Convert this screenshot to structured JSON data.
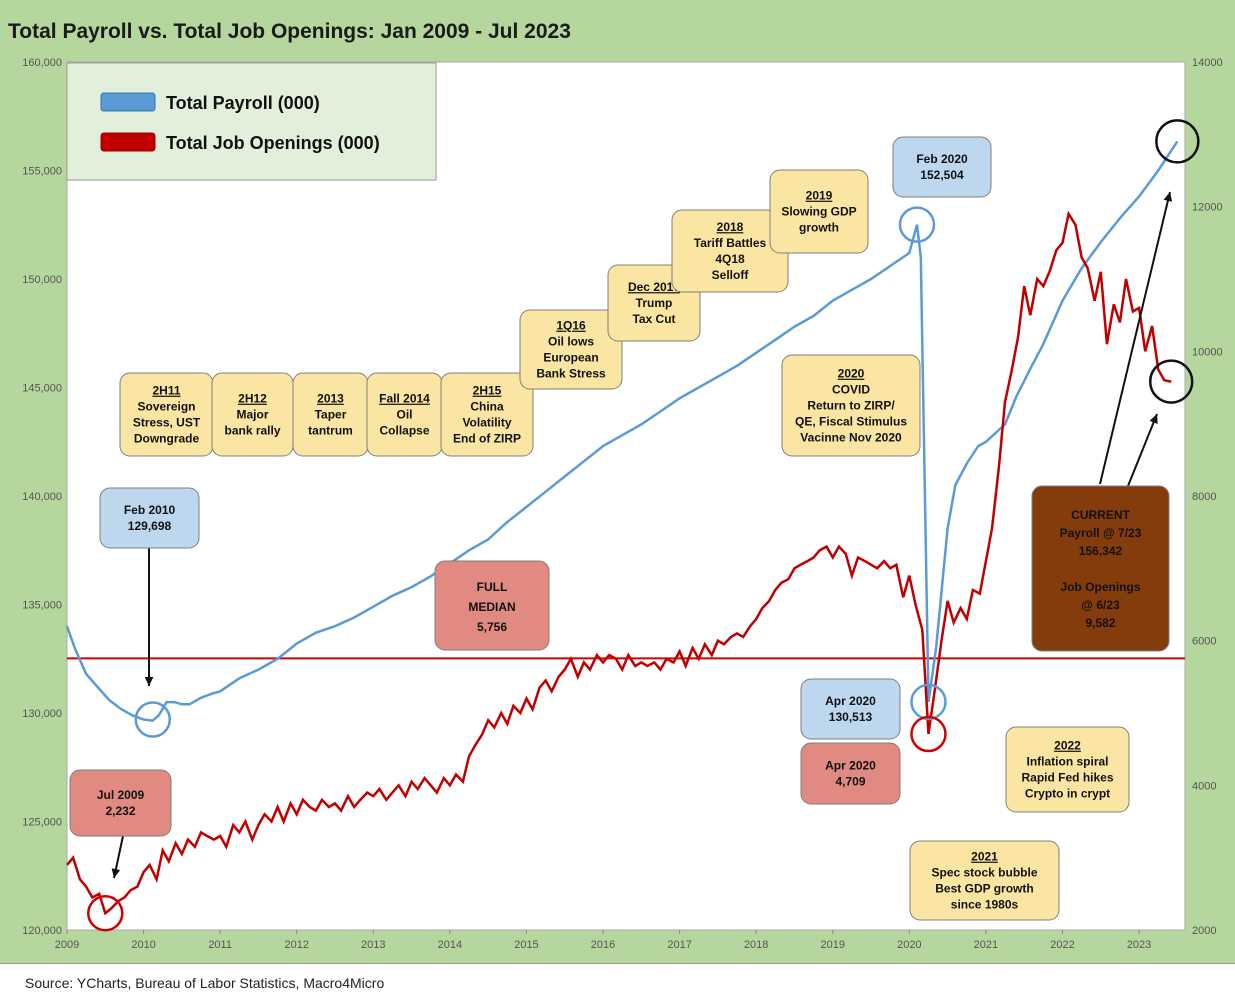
{
  "title": "Total Payroll vs. Total Job Openings: Jan 2009 - Jul 2023",
  "source": "Source: YCharts, Bureau of Labor Statistics, Macro4Micro",
  "chart_data": {
    "type": "line",
    "left_axis": {
      "min": 120000,
      "max": 160000,
      "ticks": [
        "120,000",
        "125,000",
        "130,000",
        "135,000",
        "140,000",
        "145,000",
        "150,000",
        "155,000",
        "160,000"
      ]
    },
    "right_axis": {
      "min": 2000,
      "max": 14000,
      "ticks": [
        "2000",
        "4000",
        "6000",
        "8000",
        "10000",
        "12000",
        "14000"
      ]
    },
    "x_ticks": [
      "2009",
      "2010",
      "2011",
      "2012",
      "2013",
      "2014",
      "2015",
      "2016",
      "2017",
      "2018",
      "2019",
      "2020",
      "2021",
      "2022",
      "2023"
    ],
    "x_range": [
      2009.0,
      2023.6
    ],
    "legend": [
      {
        "name": "Total Payroll (000)",
        "color": "#5b9bd5"
      },
      {
        "name": "Total Job Openings (000)",
        "color": "#c00000"
      }
    ],
    "median_line": {
      "value": 5756,
      "color": "#d00000"
    },
    "payroll": [
      [
        2009.0,
        134000
      ],
      [
        2009.1,
        133000
      ],
      [
        2009.25,
        131800
      ],
      [
        2009.4,
        131200
      ],
      [
        2009.55,
        130600
      ],
      [
        2009.7,
        130200
      ],
      [
        2009.85,
        129900
      ],
      [
        2010.0,
        129700
      ],
      [
        2010.12,
        129650
      ],
      [
        2010.2,
        129900
      ],
      [
        2010.3,
        130500
      ],
      [
        2010.4,
        130500
      ],
      [
        2010.5,
        130400
      ],
      [
        2010.6,
        130400
      ],
      [
        2010.75,
        130700
      ],
      [
        2010.9,
        130900
      ],
      [
        2011.0,
        131000
      ],
      [
        2011.25,
        131600
      ],
      [
        2011.5,
        132000
      ],
      [
        2011.75,
        132500
      ],
      [
        2012.0,
        133200
      ],
      [
        2012.25,
        133700
      ],
      [
        2012.5,
        134000
      ],
      [
        2012.75,
        134400
      ],
      [
        2013.0,
        134900
      ],
      [
        2013.25,
        135400
      ],
      [
        2013.5,
        135800
      ],
      [
        2013.75,
        136300
      ],
      [
        2014.0,
        136900
      ],
      [
        2014.25,
        137500
      ],
      [
        2014.5,
        138000
      ],
      [
        2014.75,
        138800
      ],
      [
        2015.0,
        139500
      ],
      [
        2015.25,
        140200
      ],
      [
        2015.5,
        140900
      ],
      [
        2015.75,
        141600
      ],
      [
        2016.0,
        142300
      ],
      [
        2016.25,
        142800
      ],
      [
        2016.5,
        143300
      ],
      [
        2016.75,
        143900
      ],
      [
        2017.0,
        144500
      ],
      [
        2017.25,
        145000
      ],
      [
        2017.5,
        145500
      ],
      [
        2017.75,
        146000
      ],
      [
        2018.0,
        146600
      ],
      [
        2018.25,
        147200
      ],
      [
        2018.5,
        147800
      ],
      [
        2018.75,
        148300
      ],
      [
        2019.0,
        149000
      ],
      [
        2019.25,
        149500
      ],
      [
        2019.5,
        150000
      ],
      [
        2019.75,
        150600
      ],
      [
        2020.0,
        151200
      ],
      [
        2020.1,
        152504
      ],
      [
        2020.15,
        151000
      ],
      [
        2020.25,
        130513
      ],
      [
        2020.35,
        133000
      ],
      [
        2020.5,
        138500
      ],
      [
        2020.6,
        140500
      ],
      [
        2020.75,
        141500
      ],
      [
        2020.9,
        142300
      ],
      [
        2021.0,
        142500
      ],
      [
        2021.25,
        143300
      ],
      [
        2021.4,
        144600
      ],
      [
        2021.6,
        146000
      ],
      [
        2021.75,
        147000
      ],
      [
        2022.0,
        149000
      ],
      [
        2022.25,
        150500
      ],
      [
        2022.5,
        151700
      ],
      [
        2022.75,
        152800
      ],
      [
        2023.0,
        153800
      ],
      [
        2023.25,
        155000
      ],
      [
        2023.5,
        156342
      ]
    ],
    "job_openings": [
      [
        2009.0,
        2900
      ],
      [
        2009.08,
        3000
      ],
      [
        2009.17,
        2700
      ],
      [
        2009.25,
        2600
      ],
      [
        2009.33,
        2450
      ],
      [
        2009.42,
        2500
      ],
      [
        2009.5,
        2232
      ],
      [
        2009.58,
        2300
      ],
      [
        2009.67,
        2400
      ],
      [
        2009.75,
        2450
      ],
      [
        2009.83,
        2550
      ],
      [
        2009.92,
        2600
      ],
      [
        2010.0,
        2800
      ],
      [
        2010.08,
        2900
      ],
      [
        2010.17,
        2700
      ],
      [
        2010.25,
        3100
      ],
      [
        2010.33,
        2950
      ],
      [
        2010.42,
        3200
      ],
      [
        2010.5,
        3050
      ],
      [
        2010.58,
        3250
      ],
      [
        2010.67,
        3150
      ],
      [
        2010.75,
        3350
      ],
      [
        2010.83,
        3300
      ],
      [
        2010.92,
        3250
      ],
      [
        2011.0,
        3300
      ],
      [
        2011.08,
        3150
      ],
      [
        2011.17,
        3450
      ],
      [
        2011.25,
        3350
      ],
      [
        2011.33,
        3500
      ],
      [
        2011.42,
        3250
      ],
      [
        2011.5,
        3450
      ],
      [
        2011.58,
        3600
      ],
      [
        2011.67,
        3500
      ],
      [
        2011.75,
        3700
      ],
      [
        2011.83,
        3500
      ],
      [
        2011.92,
        3750
      ],
      [
        2012.0,
        3600
      ],
      [
        2012.08,
        3800
      ],
      [
        2012.17,
        3700
      ],
      [
        2012.25,
        3650
      ],
      [
        2012.33,
        3800
      ],
      [
        2012.42,
        3700
      ],
      [
        2012.5,
        3750
      ],
      [
        2012.58,
        3650
      ],
      [
        2012.67,
        3850
      ],
      [
        2012.75,
        3700
      ],
      [
        2012.83,
        3800
      ],
      [
        2012.92,
        3900
      ],
      [
        2013.0,
        3850
      ],
      [
        2013.08,
        3950
      ],
      [
        2013.17,
        3800
      ],
      [
        2013.25,
        3900
      ],
      [
        2013.33,
        4000
      ],
      [
        2013.42,
        3850
      ],
      [
        2013.5,
        4050
      ],
      [
        2013.58,
        3950
      ],
      [
        2013.67,
        4100
      ],
      [
        2013.75,
        4000
      ],
      [
        2013.83,
        3900
      ],
      [
        2013.92,
        4100
      ],
      [
        2014.0,
        4000
      ],
      [
        2014.08,
        4150
      ],
      [
        2014.17,
        4050
      ],
      [
        2014.25,
        4400
      ],
      [
        2014.33,
        4550
      ],
      [
        2014.42,
        4700
      ],
      [
        2014.5,
        4900
      ],
      [
        2014.58,
        4800
      ],
      [
        2014.67,
        5000
      ],
      [
        2014.75,
        4850
      ],
      [
        2014.83,
        5100
      ],
      [
        2014.92,
        5000
      ],
      [
        2015.0,
        5200
      ],
      [
        2015.08,
        5050
      ],
      [
        2015.17,
        5350
      ],
      [
        2015.25,
        5450
      ],
      [
        2015.33,
        5300
      ],
      [
        2015.42,
        5500
      ],
      [
        2015.5,
        5600
      ],
      [
        2015.58,
        5750
      ],
      [
        2015.67,
        5500
      ],
      [
        2015.75,
        5700
      ],
      [
        2015.83,
        5600
      ],
      [
        2015.92,
        5800
      ],
      [
        2016.0,
        5700
      ],
      [
        2016.08,
        5800
      ],
      [
        2016.17,
        5750
      ],
      [
        2016.25,
        5600
      ],
      [
        2016.33,
        5800
      ],
      [
        2016.42,
        5650
      ],
      [
        2016.5,
        5700
      ],
      [
        2016.58,
        5650
      ],
      [
        2016.67,
        5700
      ],
      [
        2016.75,
        5600
      ],
      [
        2016.83,
        5750
      ],
      [
        2016.92,
        5700
      ],
      [
        2017.0,
        5850
      ],
      [
        2017.08,
        5650
      ],
      [
        2017.17,
        5900
      ],
      [
        2017.25,
        5750
      ],
      [
        2017.33,
        5950
      ],
      [
        2017.42,
        5800
      ],
      [
        2017.5,
        6000
      ],
      [
        2017.58,
        5950
      ],
      [
        2017.67,
        6050
      ],
      [
        2017.75,
        6100
      ],
      [
        2017.83,
        6050
      ],
      [
        2017.92,
        6200
      ],
      [
        2018.0,
        6300
      ],
      [
        2018.08,
        6450
      ],
      [
        2018.17,
        6550
      ],
      [
        2018.25,
        6700
      ],
      [
        2018.33,
        6800
      ],
      [
        2018.42,
        6850
      ],
      [
        2018.5,
        7000
      ],
      [
        2018.58,
        7050
      ],
      [
        2018.67,
        7100
      ],
      [
        2018.75,
        7150
      ],
      [
        2018.83,
        7250
      ],
      [
        2018.92,
        7300
      ],
      [
        2019.0,
        7150
      ],
      [
        2019.08,
        7300
      ],
      [
        2019.17,
        7200
      ],
      [
        2019.25,
        6900
      ],
      [
        2019.33,
        7150
      ],
      [
        2019.42,
        7100
      ],
      [
        2019.5,
        7050
      ],
      [
        2019.58,
        7000
      ],
      [
        2019.67,
        7100
      ],
      [
        2019.75,
        7000
      ],
      [
        2019.83,
        7050
      ],
      [
        2019.92,
        6600
      ],
      [
        2020.0,
        6900
      ],
      [
        2020.08,
        6500
      ],
      [
        2020.17,
        6150
      ],
      [
        2020.25,
        4709
      ],
      [
        2020.33,
        5300
      ],
      [
        2020.42,
        6000
      ],
      [
        2020.5,
        6550
      ],
      [
        2020.58,
        6250
      ],
      [
        2020.67,
        6450
      ],
      [
        2020.75,
        6300
      ],
      [
        2020.83,
        6700
      ],
      [
        2020.92,
        6650
      ],
      [
        2021.0,
        7100
      ],
      [
        2021.08,
        7550
      ],
      [
        2021.17,
        8400
      ],
      [
        2021.25,
        9300
      ],
      [
        2021.33,
        9700
      ],
      [
        2021.42,
        10200
      ],
      [
        2021.5,
        10900
      ],
      [
        2021.58,
        10500
      ],
      [
        2021.67,
        11000
      ],
      [
        2021.75,
        10900
      ],
      [
        2021.83,
        11100
      ],
      [
        2021.92,
        11400
      ],
      [
        2022.0,
        11500
      ],
      [
        2022.08,
        11900
      ],
      [
        2022.17,
        11750
      ],
      [
        2022.25,
        11300
      ],
      [
        2022.33,
        11150
      ],
      [
        2022.42,
        10700
      ],
      [
        2022.5,
        11100
      ],
      [
        2022.58,
        10100
      ],
      [
        2022.67,
        10650
      ],
      [
        2022.75,
        10400
      ],
      [
        2022.83,
        11000
      ],
      [
        2022.92,
        10550
      ],
      [
        2023.0,
        10600
      ],
      [
        2023.08,
        10000
      ],
      [
        2023.17,
        10350
      ],
      [
        2023.25,
        9750
      ],
      [
        2023.33,
        9600
      ],
      [
        2023.42,
        9582
      ]
    ],
    "annotations": [
      {
        "id": "2h11",
        "lines": [
          "2H11",
          "Sovereign",
          "Stress, UST",
          "Downgrade"
        ],
        "fill": "#fbe5a2"
      },
      {
        "id": "2h12",
        "lines": [
          "2H12",
          "Major",
          "bank rally"
        ],
        "fill": "#fbe5a2"
      },
      {
        "id": "2013",
        "lines": [
          "2013",
          "Taper",
          "tantrum"
        ],
        "fill": "#fbe5a2"
      },
      {
        "id": "fall2014",
        "lines": [
          "Fall 2014",
          "Oil",
          "Collapse"
        ],
        "fill": "#fbe5a2"
      },
      {
        "id": "2h15",
        "lines": [
          "2H15",
          "China",
          "Volatility",
          "End of ZIRP"
        ],
        "fill": "#fbe5a2"
      },
      {
        "id": "1q16",
        "lines": [
          "1Q16",
          "Oil lows",
          "European",
          "Bank Stress"
        ],
        "fill": "#fbe5a2"
      },
      {
        "id": "dec2017",
        "lines": [
          "Dec 2017",
          "Trump",
          "Tax Cut"
        ],
        "fill": "#fbe5a2"
      },
      {
        "id": "2018",
        "lines": [
          "2018",
          "Tariff Battles",
          "4Q18",
          "Selloff"
        ],
        "fill": "#fbe5a2"
      },
      {
        "id": "2019",
        "lines": [
          "2019",
          "Slowing GDP",
          "growth"
        ],
        "fill": "#fbe5a2"
      },
      {
        "id": "feb2020",
        "lines": [
          "Feb 2020",
          "152,504"
        ],
        "fill": "#bdd7ee"
      },
      {
        "id": "covid",
        "lines": [
          "2020",
          "COVID",
          "Return to ZIRP/",
          "QE, Fiscal Stimulus",
          "Vacinne Nov 2020"
        ],
        "fill": "#fbe5a2"
      },
      {
        "id": "feb2010",
        "lines": [
          "Feb 2010",
          "129,698"
        ],
        "fill": "#bdd7ee"
      },
      {
        "id": "median",
        "lines": [
          "FULL",
          "MEDIAN",
          "5,756"
        ],
        "fill": "#e08a82"
      },
      {
        "id": "apr2020p",
        "lines": [
          "Apr 2020",
          "130,513"
        ],
        "fill": "#bdd7ee"
      },
      {
        "id": "apr2020j",
        "lines": [
          "Apr 2020",
          "4,709"
        ],
        "fill": "#e08a82"
      },
      {
        "id": "jul2009",
        "lines": [
          "Jul 2009",
          "2,232"
        ],
        "fill": "#e08a82"
      },
      {
        "id": "2022",
        "lines": [
          "2022",
          "Inflation spiral",
          "Rapid Fed hikes",
          "Crypto in crypt"
        ],
        "fill": "#fbe5a2"
      },
      {
        "id": "2021",
        "lines": [
          "2021",
          "Spec stock bubble",
          "Best GDP growth",
          "since 1980s"
        ],
        "fill": "#fbe5a2"
      },
      {
        "id": "current",
        "lines": [
          "CURRENT",
          "Payroll @ 7/23",
          "156,342",
          "",
          "Job Openings",
          "@ 6/23",
          "9,582"
        ],
        "fill": "#843c0c"
      }
    ]
  }
}
